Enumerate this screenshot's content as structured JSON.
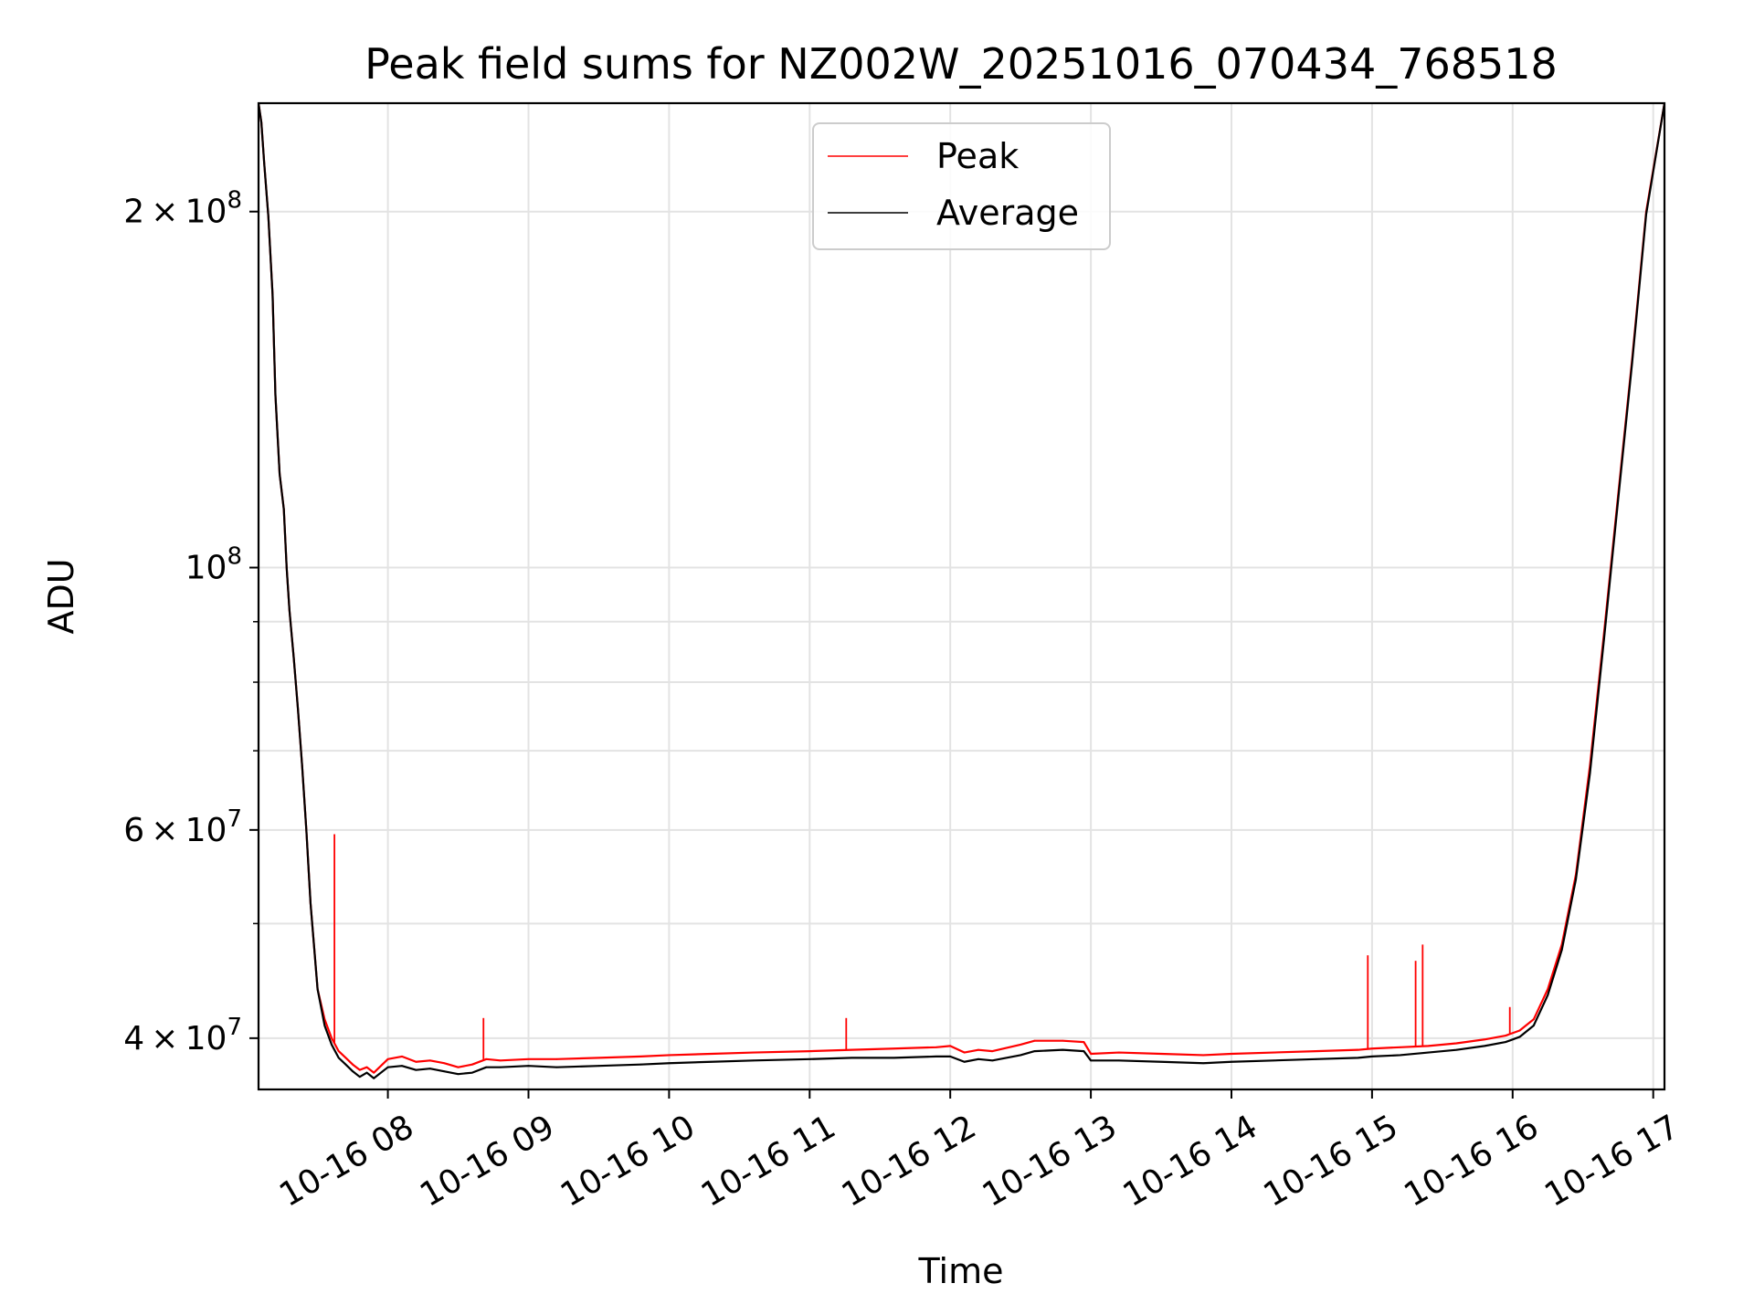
{
  "chart_data": {
    "type": "line",
    "title": "Peak field sums for NZ002W_20251016_070434_768518",
    "xlabel": "Time",
    "ylabel": "ADU",
    "yscale": "log",
    "ylim": [
      36200000,
      247000000
    ],
    "xlim_hours": [
      7.08,
      17.08
    ],
    "grid": true,
    "legend_position": "upper center",
    "x_ticks": [
      {
        "hour": 8,
        "label": "10-16 08"
      },
      {
        "hour": 9,
        "label": "10-16 09"
      },
      {
        "hour": 10,
        "label": "10-16 10"
      },
      {
        "hour": 11,
        "label": "10-16 11"
      },
      {
        "hour": 12,
        "label": "10-16 12"
      },
      {
        "hour": 13,
        "label": "10-16 13"
      },
      {
        "hour": 14,
        "label": "10-16 14"
      },
      {
        "hour": 15,
        "label": "10-16 15"
      },
      {
        "hour": 16,
        "label": "10-16 16"
      },
      {
        "hour": 17,
        "label": "10-16 17"
      }
    ],
    "y_major_ticks": [
      {
        "value": 40000000,
        "mantissa": "4",
        "exponent": "7"
      },
      {
        "value": 60000000,
        "mantissa": "6",
        "exponent": "7"
      },
      {
        "value": 100000000,
        "mantissa": "",
        "exponent": "8"
      },
      {
        "value": 200000000,
        "mantissa": "2",
        "exponent": "8"
      }
    ],
    "y_minor_ticks": [
      50000000,
      70000000,
      80000000,
      90000000
    ],
    "series": [
      {
        "name": "Peak",
        "color": "#ff0000",
        "x_hours": [
          7.08,
          7.1,
          7.12,
          7.15,
          7.18,
          7.2,
          7.23,
          7.26,
          7.28,
          7.3,
          7.33,
          7.36,
          7.39,
          7.42,
          7.45,
          7.5,
          7.55,
          7.6,
          7.65,
          7.7,
          7.75,
          7.8,
          7.85,
          7.9,
          8.0,
          8.1,
          8.2,
          8.3,
          8.4,
          8.5,
          8.6,
          8.7,
          8.8,
          9.0,
          9.2,
          9.5,
          9.8,
          10.0,
          10.3,
          10.6,
          11.0,
          11.3,
          11.6,
          11.9,
          12.0,
          12.1,
          12.2,
          12.3,
          12.5,
          12.6,
          12.8,
          12.95,
          13.0,
          13.2,
          13.5,
          13.8,
          14.0,
          14.3,
          14.6,
          14.9,
          15.0,
          15.2,
          15.4,
          15.6,
          15.8,
          15.95,
          16.05,
          16.15,
          16.25,
          16.35,
          16.45,
          16.55,
          16.65,
          16.75,
          16.85,
          16.95,
          17.08
        ],
        "values": [
          247000000,
          238000000,
          220000000,
          198000000,
          170000000,
          140000000,
          120000000,
          112000000,
          100000000,
          92000000,
          84000000,
          76000000,
          68000000,
          60000000,
          52000000,
          44000000,
          41500000,
          40000000,
          39000000,
          38500000,
          38000000,
          37600000,
          37800000,
          37400000,
          38400000,
          38600000,
          38200000,
          38300000,
          38100000,
          37800000,
          38000000,
          38400000,
          38300000,
          38400000,
          38400000,
          38500000,
          38600000,
          38700000,
          38800000,
          38900000,
          39000000,
          39100000,
          39200000,
          39300000,
          39400000,
          38900000,
          39100000,
          39000000,
          39500000,
          39800000,
          39800000,
          39700000,
          38800000,
          38900000,
          38800000,
          38700000,
          38800000,
          38900000,
          39000000,
          39100000,
          39200000,
          39300000,
          39400000,
          39600000,
          39900000,
          40200000,
          40600000,
          41500000,
          44000000,
          48000000,
          55000000,
          68000000,
          88000000,
          115000000,
          150000000,
          200000000,
          247000000
        ],
        "spikes": [
          {
            "hour": 7.62,
            "value": 59500000
          },
          {
            "hour": 8.68,
            "value": 41600000
          },
          {
            "hour": 11.26,
            "value": 41600000
          },
          {
            "hour": 14.97,
            "value": 47000000
          },
          {
            "hour": 15.31,
            "value": 46500000
          },
          {
            "hour": 15.36,
            "value": 48000000
          },
          {
            "hour": 15.98,
            "value": 42500000
          }
        ]
      },
      {
        "name": "Average",
        "color": "#000000",
        "x_hours": [
          7.08,
          7.1,
          7.12,
          7.15,
          7.18,
          7.2,
          7.23,
          7.26,
          7.28,
          7.3,
          7.33,
          7.36,
          7.39,
          7.42,
          7.45,
          7.5,
          7.55,
          7.6,
          7.65,
          7.7,
          7.75,
          7.8,
          7.85,
          7.9,
          8.0,
          8.1,
          8.2,
          8.3,
          8.4,
          8.5,
          8.6,
          8.7,
          8.8,
          9.0,
          9.2,
          9.5,
          9.8,
          10.0,
          10.3,
          10.6,
          11.0,
          11.3,
          11.6,
          11.9,
          12.0,
          12.1,
          12.2,
          12.3,
          12.5,
          12.6,
          12.8,
          12.95,
          13.0,
          13.2,
          13.5,
          13.8,
          14.0,
          14.3,
          14.6,
          14.9,
          15.0,
          15.2,
          15.4,
          15.6,
          15.8,
          15.95,
          16.05,
          16.15,
          16.25,
          16.35,
          16.45,
          16.55,
          16.65,
          16.75,
          16.85,
          16.95,
          17.08
        ],
        "values": [
          247000000,
          238000000,
          220000000,
          198000000,
          170000000,
          140000000,
          120000000,
          112000000,
          100000000,
          92000000,
          84000000,
          76000000,
          68000000,
          60000000,
          52000000,
          44000000,
          41000000,
          39500000,
          38500000,
          38000000,
          37500000,
          37100000,
          37400000,
          37000000,
          37800000,
          37900000,
          37600000,
          37700000,
          37500000,
          37300000,
          37400000,
          37800000,
          37800000,
          37900000,
          37800000,
          37900000,
          38000000,
          38100000,
          38200000,
          38300000,
          38400000,
          38500000,
          38500000,
          38600000,
          38600000,
          38200000,
          38400000,
          38300000,
          38700000,
          39000000,
          39100000,
          39000000,
          38300000,
          38300000,
          38200000,
          38100000,
          38200000,
          38300000,
          38400000,
          38500000,
          38600000,
          38700000,
          38900000,
          39100000,
          39400000,
          39700000,
          40100000,
          41000000,
          43500000,
          47500000,
          54500000,
          67000000,
          87000000,
          114000000,
          149000000,
          199000000,
          247000000
        ]
      }
    ]
  }
}
